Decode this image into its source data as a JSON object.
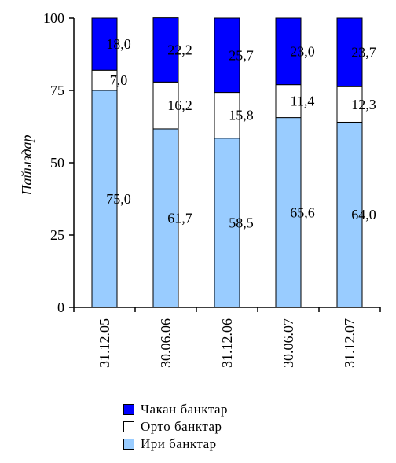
{
  "chart_data": {
    "type": "bar",
    "stacked": true,
    "ylabel": "Пайыздар",
    "ylim": [
      0,
      100
    ],
    "yticks": [
      "0",
      "25",
      "50",
      "75",
      "100"
    ],
    "categories": [
      "31.12.05",
      "30.06.06",
      "31.12.06",
      "30.06.07",
      "31.12.07"
    ],
    "series": [
      {
        "name": "Ири банктар",
        "color": "#99ccff",
        "values": [
          75.0,
          61.7,
          58.5,
          65.6,
          64.0
        ],
        "labels": [
          "75,0",
          "61,7",
          "58,5",
          "65,6",
          "64,0"
        ]
      },
      {
        "name": "Орто банктар",
        "color": "#ffffff",
        "values": [
          7.0,
          16.2,
          15.8,
          11.4,
          12.3
        ],
        "labels": [
          "7,0",
          "16,2",
          "15,8",
          "11,4",
          "12,3"
        ]
      },
      {
        "name": "Чакан банктар",
        "color": "#0000ff",
        "values": [
          18.0,
          22.2,
          25.7,
          23.0,
          23.7
        ],
        "labels": [
          "18,0",
          "22,2",
          "25,7",
          "23,0",
          "23,7"
        ]
      }
    ],
    "legend": [
      {
        "name": "Чакан банктар",
        "color": "#0000ff"
      },
      {
        "name": "Орто банктар",
        "color": "#ffffff"
      },
      {
        "name": "Ири банктар",
        "color": "#99ccff"
      }
    ],
    "grid": false,
    "legend_position": "bottom"
  }
}
